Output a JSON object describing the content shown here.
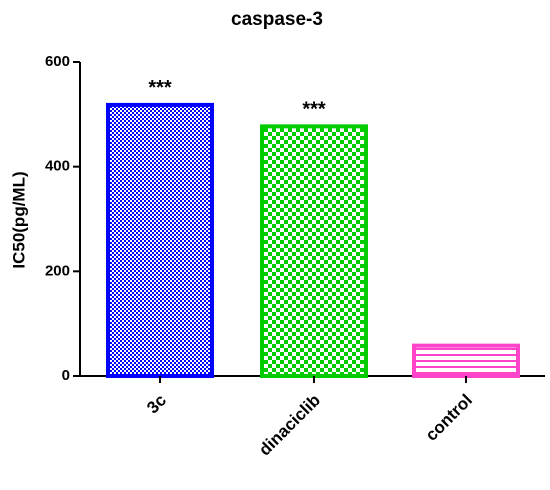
{
  "chart_data": {
    "type": "bar",
    "title": "caspase-3",
    "y_label": "IC50(pg/ML)",
    "categories": [
      "3c",
      "dinaciclib",
      "control"
    ],
    "values": [
      518,
      477,
      58
    ],
    "colors": [
      "#0000ff",
      "#00cc00",
      "#ff44cc"
    ],
    "annotations": [
      "***",
      "***"
    ],
    "ylim": [
      0,
      600
    ],
    "yticks": [
      0,
      200,
      400,
      600
    ],
    "grid": false
  }
}
